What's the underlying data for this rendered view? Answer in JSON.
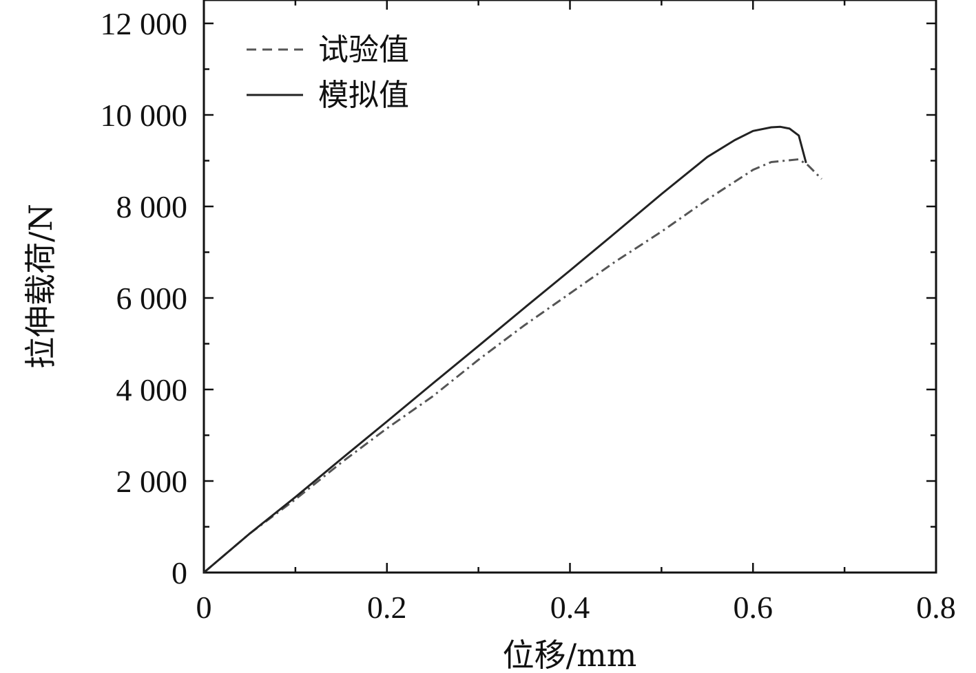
{
  "chart_data": {
    "type": "line",
    "xlabel": "位移/mm",
    "ylabel": "拉伸载荷/N",
    "xlim": [
      0,
      0.8
    ],
    "ylim": [
      0,
      12000
    ],
    "xticks": [
      0,
      0.2,
      0.4,
      0.6,
      0.8
    ],
    "xtick_labels": [
      "0",
      "0.2",
      "0.4",
      "0.6",
      "0.8"
    ],
    "yticks": [
      0,
      2000,
      4000,
      6000,
      8000,
      10000,
      12000
    ],
    "ytick_labels": [
      "0",
      "2 000",
      "4 000",
      "6 000",
      "8 000",
      "10 000",
      "12 000"
    ],
    "grid": false,
    "legend_position": "top-left",
    "series": [
      {
        "name": "试验值",
        "style": "dashed",
        "color": "#555555",
        "x": [
          0,
          0.05,
          0.1,
          0.15,
          0.2,
          0.25,
          0.3,
          0.35,
          0.4,
          0.45,
          0.5,
          0.55,
          0.6,
          0.62,
          0.65,
          0.66,
          0.67,
          0.675
        ],
        "y": [
          0,
          850,
          1600,
          2400,
          3150,
          3850,
          4650,
          5400,
          6100,
          6800,
          7450,
          8150,
          8800,
          8970,
          9030,
          8900,
          8700,
          8600
        ]
      },
      {
        "name": "模拟值",
        "style": "solid",
        "color": "#222222",
        "x": [
          0,
          0.05,
          0.1,
          0.15,
          0.2,
          0.25,
          0.3,
          0.35,
          0.4,
          0.45,
          0.5,
          0.55,
          0.58,
          0.6,
          0.62,
          0.63,
          0.64,
          0.65,
          0.658
        ],
        "y": [
          0,
          850,
          1650,
          2480,
          3300,
          4130,
          4950,
          5780,
          6600,
          7430,
          8270,
          9080,
          9450,
          9650,
          9730,
          9740,
          9700,
          9550,
          8950
        ]
      }
    ]
  }
}
